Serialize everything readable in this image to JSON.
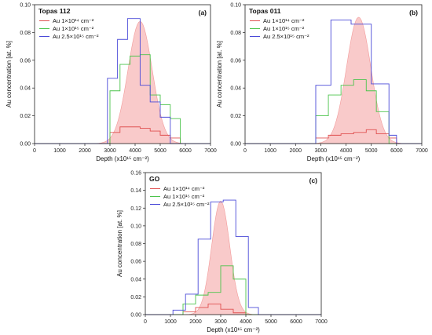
{
  "chart_data": [
    {
      "type": "line",
      "title": "Topas 112",
      "panel_label": "(a)",
      "xlabel": "Depth (x10¹⁵ cm⁻²)",
      "ylabel": "Au concentration [at. %]",
      "xlim": [
        0,
        7000
      ],
      "ylim": [
        0,
        0.1
      ],
      "xticks": [
        "0",
        "1000",
        "2000",
        "3000",
        "4000",
        "5000",
        "6000",
        "7000"
      ],
      "yticks": [
        "0.00",
        "0.02",
        "0.04",
        "0.06",
        "0.08",
        "0.10"
      ],
      "legend": "top-left",
      "series": [
        {
          "name": "Au 1×10¹⁴ cm⁻²",
          "kind": "step",
          "color": "#e05050",
          "edges": [
            3000,
            3400,
            3800,
            4200,
            4600,
            5000,
            5400,
            5800
          ],
          "values": [
            0.008,
            0.012,
            0.012,
            0.011,
            0.009,
            0.006,
            0.004
          ]
        },
        {
          "name": "Au 1×10¹⁵ cm⁻²",
          "kind": "step",
          "color": "#4cc44c",
          "edges": [
            3000,
            3400,
            3800,
            4200,
            4600,
            5000,
            5400,
            5800
          ],
          "values": [
            0.038,
            0.057,
            0.063,
            0.064,
            0.035,
            0.028,
            0.018
          ]
        },
        {
          "name": "Au 2.5×10¹⁵ cm⁻²",
          "kind": "step",
          "color": "#4b4bd8",
          "edges": [
            2900,
            3300,
            3700,
            4200,
            4600,
            5000,
            5400
          ],
          "values": [
            0.047,
            0.075,
            0.09,
            0.042,
            0.03,
            0.019
          ]
        },
        {
          "name": "",
          "kind": "gaussian",
          "color": "#f7b8b8",
          "peak": 0.088,
          "center": 4200,
          "sigma": 480
        }
      ]
    },
    {
      "type": "line",
      "title": "Topas 011",
      "panel_label": "(b)",
      "xlabel": "Depth (x10¹⁵ cm⁻²)",
      "ylabel": "Au concentration [at. %]",
      "xlim": [
        0,
        7000
      ],
      "ylim": [
        0,
        0.1
      ],
      "xticks": [
        "0",
        "1000",
        "2000",
        "3000",
        "4000",
        "5000",
        "6000",
        "7000"
      ],
      "yticks": [
        "0.00",
        "0.02",
        "0.04",
        "0.06",
        "0.08",
        "0.10"
      ],
      "legend": "top-left",
      "series": [
        {
          "name": "Au 1×10¹⁴ cm⁻²",
          "kind": "step",
          "color": "#e05050",
          "edges": [
            2800,
            3300,
            3800,
            4300,
            4800,
            5200,
            5700,
            6000
          ],
          "values": [
            0.004,
            0.006,
            0.007,
            0.008,
            0.01,
            0.007,
            0.004
          ]
        },
        {
          "name": "Au 1×10¹⁵ cm⁻²",
          "kind": "step",
          "color": "#4cc44c",
          "edges": [
            2800,
            3300,
            3800,
            4300,
            4800,
            5200,
            5700
          ],
          "values": [
            0.02,
            0.035,
            0.042,
            0.046,
            0.038,
            0.023
          ]
        },
        {
          "name": "Au 2.5×10¹⁵ cm⁻²",
          "kind": "step",
          "color": "#4b4bd8",
          "edges": [
            2800,
            3400,
            4200,
            5000,
            5700,
            6000
          ],
          "values": [
            0.042,
            0.089,
            0.086,
            0.043,
            0.006
          ]
        },
        {
          "name": "",
          "kind": "gaussian",
          "color": "#f7b8b8",
          "peak": 0.091,
          "center": 4500,
          "sigma": 480
        }
      ]
    },
    {
      "type": "line",
      "title": "GO",
      "panel_label": "(c)",
      "xlabel": "Depth (x10¹⁵ cm⁻²)",
      "ylabel": "Au concentration [at. %]",
      "xlim": [
        0,
        7000
      ],
      "ylim": [
        0,
        0.16
      ],
      "xticks": [
        "0",
        "1000",
        "2000",
        "3000",
        "4000",
        "5000",
        "6000",
        "7000"
      ],
      "yticks": [
        "0.00",
        "0.02",
        "0.04",
        "0.06",
        "0.08",
        "0.10",
        "0.12",
        "0.14",
        "0.16"
      ],
      "legend": "top-left",
      "series": [
        {
          "name": "Au 1×10¹⁴ cm⁻²",
          "kind": "step",
          "color": "#e05050",
          "edges": [
            1500,
            2000,
            2500,
            3000,
            3500,
            4000
          ],
          "values": [
            0.003,
            0.008,
            0.012,
            0.006,
            0.002
          ]
        },
        {
          "name": "Au 1×10¹⁵ cm⁻²",
          "kind": "step",
          "color": "#4cc44c",
          "edges": [
            1500,
            2000,
            2500,
            3000,
            3500,
            4000
          ],
          "values": [
            0.012,
            0.022,
            0.025,
            0.055,
            0.04
          ]
        },
        {
          "name": "Au 2.5×10¹⁵ cm⁻²",
          "kind": "step",
          "color": "#4b4bd8",
          "edges": [
            1100,
            1600,
            2100,
            2600,
            3100,
            3600,
            4100,
            4500
          ],
          "values": [
            0.005,
            0.023,
            0.085,
            0.127,
            0.129,
            0.088,
            0.008
          ]
        },
        {
          "name": "",
          "kind": "gaussian",
          "color": "#f7b8b8",
          "peak": 0.128,
          "center": 3000,
          "sigma": 360
        }
      ]
    }
  ]
}
